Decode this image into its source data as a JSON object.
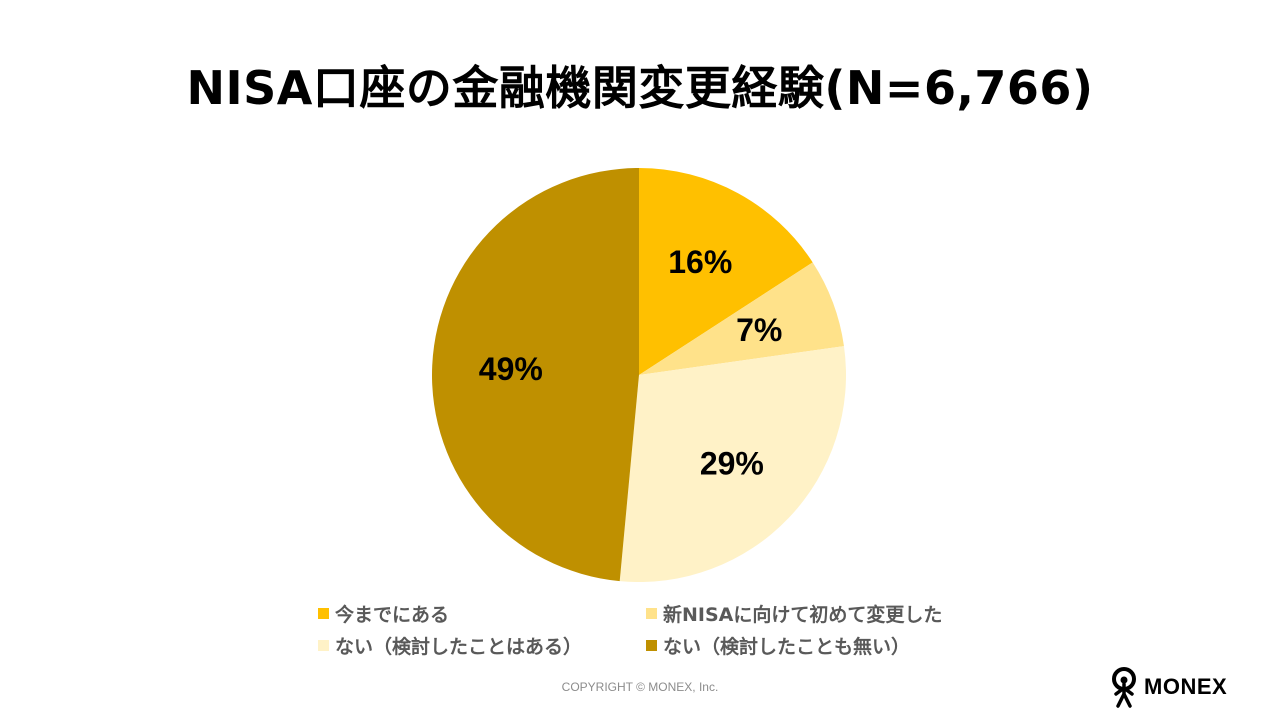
{
  "title": "NISA口座の金融機関変更経験(N=6,766)",
  "chart_data": {
    "type": "pie",
    "title": "NISA口座の金融機関変更経験(N=6,766)",
    "start_angle": "12 o'clock",
    "direction": "clockwise",
    "slices": [
      {
        "label": "今までにある",
        "value": 16,
        "display": "16%",
        "color": "#FFC000"
      },
      {
        "label": "新NISAに向けて初めて変更した",
        "value": 7,
        "display": "7%",
        "color": "#FFE28A"
      },
      {
        "label": "ない（検討したことはある）",
        "value": 29,
        "display": "29%",
        "color": "#FFF2C7"
      },
      {
        "label": "ない（検討したことも無い）",
        "value": 49,
        "display": "49%",
        "color": "#BF9000"
      }
    ],
    "legend_position": "bottom"
  },
  "footer": {
    "copyright": "COPYRIGHT © MONEX, Inc.",
    "logo_text": "MONEX"
  }
}
